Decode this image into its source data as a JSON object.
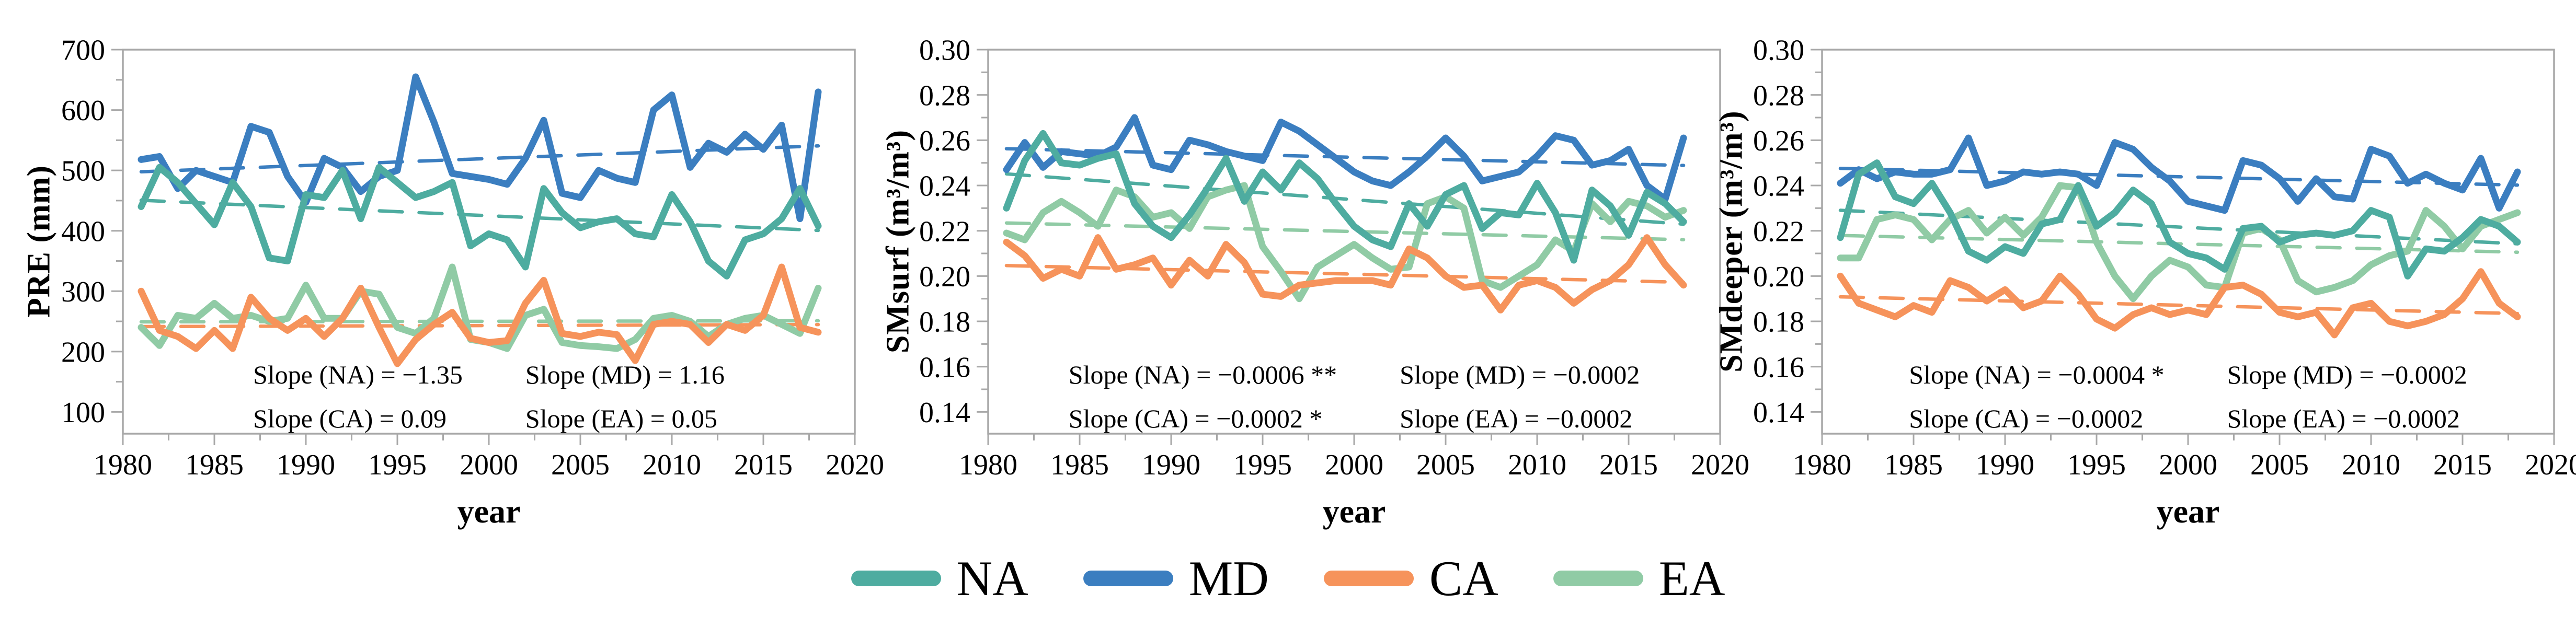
{
  "colors": {
    "NA": "#4EACA0",
    "MD": "#3B7EC0",
    "CA": "#F6935B",
    "EA": "#90CBA5",
    "axis": "#A8A8A8",
    "text": "#000000"
  },
  "legend": {
    "items": [
      {
        "id": "NA",
        "label": "NA"
      },
      {
        "id": "MD",
        "label": "MD"
      },
      {
        "id": "CA",
        "label": "CA"
      },
      {
        "id": "EA",
        "label": "EA"
      }
    ]
  },
  "x_axis": {
    "label": "year",
    "min": 1980,
    "max": 2020,
    "major_ticks": [
      1980,
      1985,
      1990,
      1995,
      2000,
      2005,
      2010,
      2015,
      2020
    ],
    "minor_step": 2.5
  },
  "years": [
    1981,
    1982,
    1983,
    1984,
    1985,
    1986,
    1987,
    1988,
    1989,
    1990,
    1991,
    1992,
    1993,
    1994,
    1995,
    1996,
    1997,
    1998,
    1999,
    2000,
    2001,
    2002,
    2003,
    2004,
    2005,
    2006,
    2007,
    2008,
    2009,
    2010,
    2011,
    2012,
    2013,
    2014,
    2015,
    2016,
    2017,
    2018
  ],
  "chart_data": [
    {
      "type": "line",
      "ylabel": "PRE (mm)",
      "xlabel": "year",
      "ylim": [
        100,
        700
      ],
      "yticks": [
        100,
        200,
        300,
        400,
        500,
        600,
        700
      ],
      "y_minor_step": 50,
      "grid": false,
      "series": [
        {
          "name": "NA",
          "trend_slope": -1.35,
          "values": [
            440,
            505,
            480,
            445,
            410,
            480,
            440,
            355,
            350,
            460,
            455,
            500,
            420,
            505,
            480,
            455,
            465,
            480,
            375,
            395,
            385,
            340,
            470,
            430,
            405,
            415,
            420,
            395,
            390,
            460,
            415,
            350,
            325,
            385,
            395,
            420,
            470,
            408
          ]
        },
        {
          "name": "MD",
          "trend_slope": 1.16,
          "values": [
            518,
            523,
            470,
            500,
            490,
            480,
            573,
            563,
            490,
            447,
            520,
            505,
            465,
            490,
            500,
            655,
            580,
            495,
            490,
            485,
            477,
            520,
            583,
            462,
            455,
            500,
            487,
            480,
            600,
            625,
            505,
            545,
            530,
            560,
            535,
            575,
            420,
            630
          ]
        },
        {
          "name": "CA",
          "trend_slope": 0.09,
          "values": [
            300,
            235,
            225,
            205,
            235,
            205,
            290,
            255,
            235,
            255,
            225,
            255,
            305,
            240,
            180,
            220,
            245,
            265,
            222,
            215,
            218,
            280,
            318,
            230,
            225,
            232,
            228,
            185,
            245,
            250,
            245,
            215,
            245,
            235,
            260,
            340,
            240,
            232
          ]
        },
        {
          "name": "EA",
          "trend_slope": 0.05,
          "values": [
            240,
            210,
            260,
            255,
            280,
            255,
            260,
            250,
            255,
            310,
            255,
            255,
            300,
            295,
            240,
            230,
            255,
            340,
            220,
            215,
            205,
            260,
            270,
            215,
            210,
            208,
            205,
            220,
            255,
            260,
            250,
            225,
            245,
            255,
            260,
            245,
            230,
            305
          ]
        }
      ],
      "annotations": {
        "na": "Slope (NA) = −1.35",
        "md": "Slope (MD) = 1.16",
        "ca": "Slope (CA) = 0.09",
        "ea": "Slope (EA) = 0.05"
      }
    },
    {
      "type": "line",
      "ylabel": "SMsurf (m³/m³)",
      "xlabel": "year",
      "ylim": [
        0.14,
        0.3
      ],
      "yticks": [
        0.14,
        0.16,
        0.18,
        0.2,
        0.22,
        0.24,
        0.26,
        0.28,
        0.3
      ],
      "y_minor_step": 0.01,
      "grid": false,
      "series": [
        {
          "name": "NA",
          "trend_slope": -0.0006,
          "values": [
            0.23,
            0.251,
            0.263,
            0.25,
            0.249,
            0.252,
            0.254,
            0.232,
            0.222,
            0.217,
            0.227,
            0.239,
            0.252,
            0.233,
            0.246,
            0.238,
            0.25,
            0.243,
            0.232,
            0.222,
            0.216,
            0.213,
            0.232,
            0.222,
            0.236,
            0.24,
            0.221,
            0.228,
            0.227,
            0.241,
            0.228,
            0.207,
            0.238,
            0.231,
            0.218,
            0.237,
            0.232,
            0.224
          ]
        },
        {
          "name": "MD",
          "trend_slope": -0.0002,
          "values": [
            0.247,
            0.259,
            0.248,
            0.255,
            0.254,
            0.253,
            0.257,
            0.27,
            0.249,
            0.247,
            0.26,
            0.258,
            0.255,
            0.253,
            0.251,
            0.268,
            0.264,
            0.258,
            0.252,
            0.246,
            0.242,
            0.24,
            0.246,
            0.253,
            0.261,
            0.253,
            0.242,
            0.244,
            0.246,
            0.253,
            0.262,
            0.26,
            0.249,
            0.251,
            0.256,
            0.24,
            0.234,
            0.261
          ]
        },
        {
          "name": "CA",
          "trend_slope": -0.0002,
          "values": [
            0.215,
            0.209,
            0.199,
            0.203,
            0.2,
            0.217,
            0.203,
            0.205,
            0.208,
            0.196,
            0.207,
            0.2,
            0.214,
            0.206,
            0.192,
            0.191,
            0.196,
            0.197,
            0.198,
            0.198,
            0.198,
            0.196,
            0.212,
            0.208,
            0.2,
            0.195,
            0.196,
            0.185,
            0.196,
            0.198,
            0.195,
            0.188,
            0.194,
            0.198,
            0.205,
            0.217,
            0.205,
            0.196
          ]
        },
        {
          "name": "EA",
          "trend_slope": -0.0002,
          "values": [
            0.219,
            0.216,
            0.228,
            0.233,
            0.228,
            0.222,
            0.238,
            0.235,
            0.226,
            0.228,
            0.221,
            0.235,
            0.238,
            0.24,
            0.213,
            0.202,
            0.19,
            0.204,
            0.209,
            0.214,
            0.208,
            0.203,
            0.204,
            0.232,
            0.235,
            0.23,
            0.198,
            0.195,
            0.2,
            0.205,
            0.216,
            0.211,
            0.232,
            0.224,
            0.233,
            0.231,
            0.226,
            0.229
          ]
        }
      ],
      "annotations": {
        "na": "Slope (NA) = −0.0006 **",
        "md": "Slope (MD) = −0.0002",
        "ca": "Slope (CA) = −0.0002 *",
        "ea": "Slope (EA) = −0.0002"
      }
    },
    {
      "type": "line",
      "ylabel": "SMdeeper (m³/m³)",
      "xlabel": "year",
      "ylim": [
        0.14,
        0.3
      ],
      "yticks": [
        0.14,
        0.16,
        0.18,
        0.2,
        0.22,
        0.24,
        0.26,
        0.28,
        0.3
      ],
      "y_minor_step": 0.01,
      "grid": false,
      "series": [
        {
          "name": "NA",
          "trend_slope": -0.0004,
          "values": [
            0.217,
            0.245,
            0.25,
            0.235,
            0.232,
            0.241,
            0.228,
            0.211,
            0.207,
            0.213,
            0.21,
            0.223,
            0.225,
            0.24,
            0.222,
            0.228,
            0.238,
            0.232,
            0.215,
            0.21,
            0.208,
            0.203,
            0.221,
            0.222,
            0.215,
            0.218,
            0.219,
            0.218,
            0.22,
            0.229,
            0.226,
            0.2,
            0.212,
            0.211,
            0.217,
            0.225,
            0.222,
            0.215
          ]
        },
        {
          "name": "MD",
          "trend_slope": -0.0002,
          "values": [
            0.241,
            0.247,
            0.243,
            0.246,
            0.245,
            0.245,
            0.247,
            0.261,
            0.24,
            0.242,
            0.246,
            0.245,
            0.246,
            0.245,
            0.24,
            0.259,
            0.256,
            0.248,
            0.242,
            0.233,
            0.231,
            0.229,
            0.251,
            0.249,
            0.243,
            0.233,
            0.243,
            0.235,
            0.234,
            0.256,
            0.253,
            0.241,
            0.245,
            0.241,
            0.238,
            0.252,
            0.23,
            0.246
          ]
        },
        {
          "name": "CA",
          "trend_slope": -0.0002,
          "values": [
            0.2,
            0.188,
            0.185,
            0.182,
            0.187,
            0.184,
            0.198,
            0.195,
            0.189,
            0.194,
            0.186,
            0.189,
            0.2,
            0.192,
            0.181,
            0.177,
            0.183,
            0.186,
            0.183,
            0.185,
            0.183,
            0.195,
            0.196,
            0.192,
            0.184,
            0.182,
            0.184,
            0.174,
            0.186,
            0.188,
            0.18,
            0.178,
            0.18,
            0.183,
            0.19,
            0.202,
            0.188,
            0.182
          ]
        },
        {
          "name": "EA",
          "trend_slope": -0.0002,
          "values": [
            0.208,
            0.208,
            0.225,
            0.227,
            0.225,
            0.216,
            0.225,
            0.229,
            0.219,
            0.226,
            0.218,
            0.226,
            0.24,
            0.239,
            0.215,
            0.2,
            0.19,
            0.2,
            0.207,
            0.204,
            0.196,
            0.195,
            0.219,
            0.221,
            0.216,
            0.198,
            0.193,
            0.195,
            0.198,
            0.205,
            0.209,
            0.211,
            0.229,
            0.222,
            0.212,
            0.222,
            0.225,
            0.228
          ]
        }
      ],
      "annotations": {
        "na": "Slope (NA) = −0.0004 *",
        "md": "Slope (MD) = −0.0002",
        "ca": "Slope (CA) = −0.0002",
        "ea": "Slope (EA) = −0.0002"
      }
    }
  ]
}
